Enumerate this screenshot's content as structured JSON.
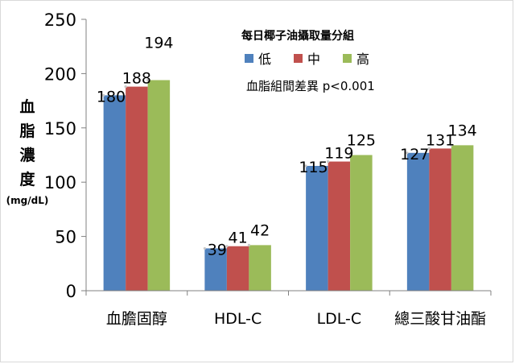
{
  "chart_data": {
    "type": "bar",
    "categories": [
      "血膽固醇",
      "HDL-C",
      "LDL-C",
      "總三酸甘油酯"
    ],
    "series": [
      {
        "name": "低",
        "values": [
          180,
          39,
          115,
          127
        ],
        "color": "#4f81bd"
      },
      {
        "name": "中",
        "values": [
          188,
          41,
          119,
          131
        ],
        "color": "#c0504d"
      },
      {
        "name": "高",
        "values": [
          194,
          42,
          125,
          134
        ],
        "color": "#9bbb59"
      }
    ],
    "ylim": [
      0,
      250
    ],
    "yticks": [
      0,
      50,
      100,
      150,
      200,
      250
    ],
    "ylabel": "血脂濃度",
    "ylabel_unit": "(mg/dL)",
    "legend_title": "每日椰子油攝取量分組",
    "annotation": "血脂組間差異 p<0.001",
    "grid": false,
    "legend_position": "top-right"
  }
}
